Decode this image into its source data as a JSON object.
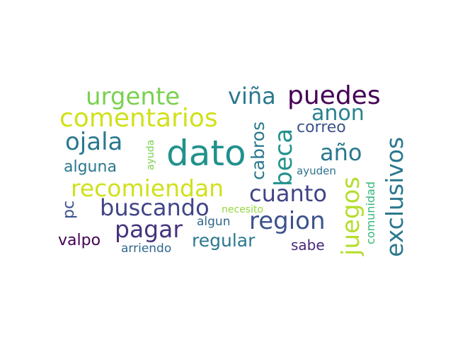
{
  "words": [
    {
      "text": "urgente",
      "color": "#7ad151"
    },
    {
      "text": "viña",
      "color": "#2a788e"
    },
    {
      "text": "puedes",
      "color": "#440154"
    },
    {
      "text": "comentarios",
      "color": "#d0e11c"
    },
    {
      "text": "anon",
      "color": "#26828e"
    },
    {
      "text": "ojala",
      "color": "#2a788e"
    },
    {
      "text": "dato",
      "color": "#21918c"
    },
    {
      "text": "año",
      "color": "#2a788e"
    },
    {
      "text": "correo",
      "color": "#3b528b"
    },
    {
      "text": "alguna",
      "color": "#2a788e"
    },
    {
      "text": "ayuda",
      "color": "#7ad151"
    },
    {
      "text": "ayuden",
      "color": "#2c728e"
    },
    {
      "text": "recomiendan",
      "color": "#d0e11c"
    },
    {
      "text": "cuanto",
      "color": "#414487"
    },
    {
      "text": "buscando",
      "color": "#414487"
    },
    {
      "text": "pc",
      "color": "#3b528b"
    },
    {
      "text": "necesito",
      "color": "#95d840"
    },
    {
      "text": "pagar",
      "color": "#46337e"
    },
    {
      "text": "region",
      "color": "#3b528b"
    },
    {
      "text": "algun",
      "color": "#31688e"
    },
    {
      "text": "valpo",
      "color": "#440154"
    },
    {
      "text": "regular",
      "color": "#2a788e"
    },
    {
      "text": "sabe",
      "color": "#482878"
    },
    {
      "text": "arriendo",
      "color": "#31688e"
    },
    {
      "text": "cabros",
      "color": "#2a788e"
    },
    {
      "text": "beca",
      "color": "#21918c"
    },
    {
      "text": "juegos",
      "color": "#b5de2b"
    },
    {
      "text": "comunidad",
      "color": "#35b779"
    },
    {
      "text": "exclusivos",
      "color": "#2a788e"
    }
  ]
}
